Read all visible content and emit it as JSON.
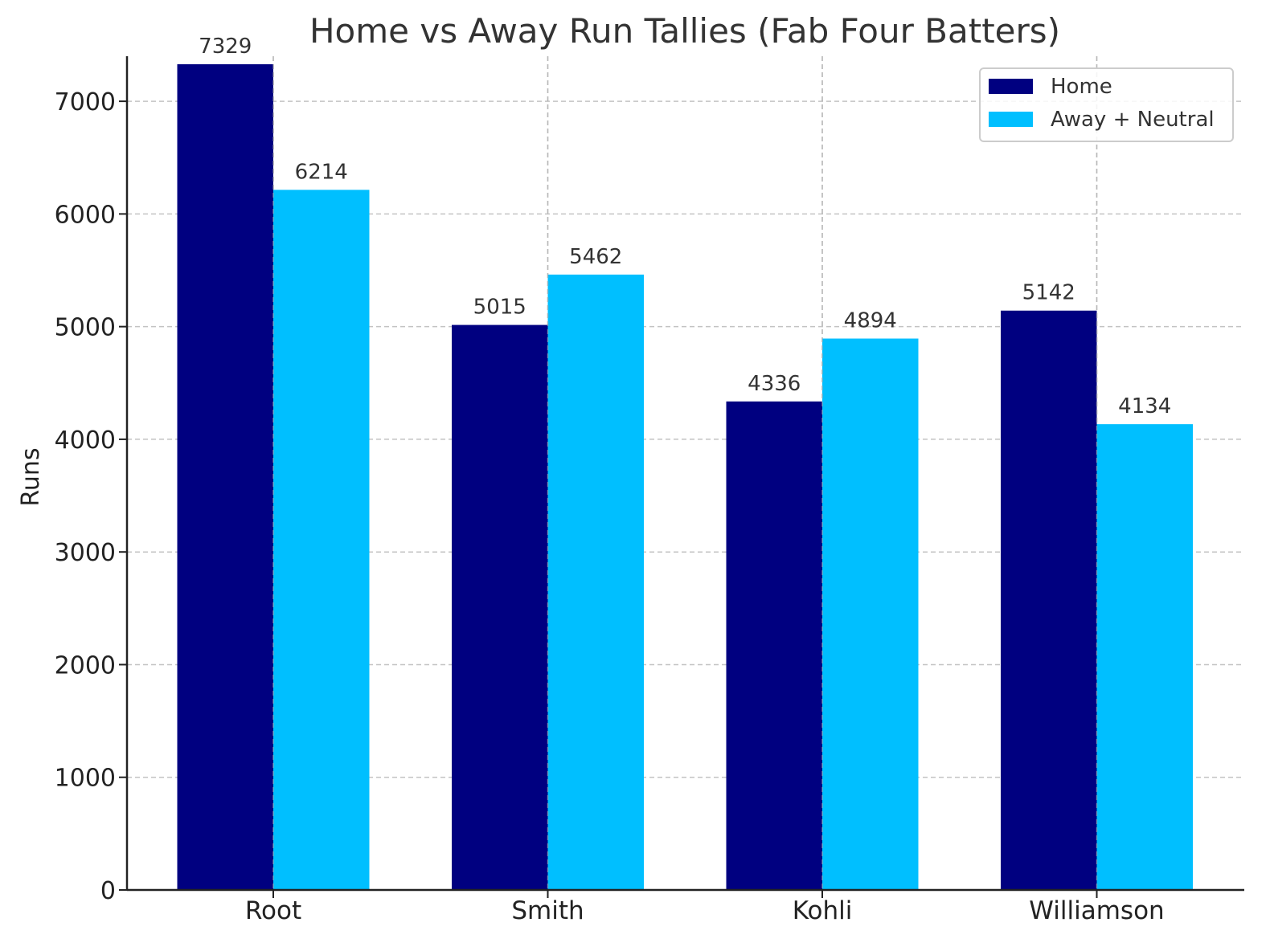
{
  "chart_data": {
    "type": "bar",
    "title": "Home vs Away Run Tallies (Fab Four Batters)",
    "xlabel": "",
    "ylabel": "Runs",
    "categories": [
      "Root",
      "Smith",
      "Kohli",
      "Williamson"
    ],
    "series": [
      {
        "name": "Home",
        "values": [
          7329,
          5015,
          4336,
          5142
        ],
        "color": "#000080"
      },
      {
        "name": "Away + Neutral",
        "values": [
          6214,
          5462,
          4894,
          4134
        ],
        "color": "#00BFFF"
      }
    ],
    "ylim": [
      0,
      7400
    ],
    "yticks": [
      0,
      1000,
      2000,
      3000,
      4000,
      5000,
      6000,
      7000
    ],
    "grid": true,
    "legend_position": "top-right",
    "data_labels": true
  }
}
